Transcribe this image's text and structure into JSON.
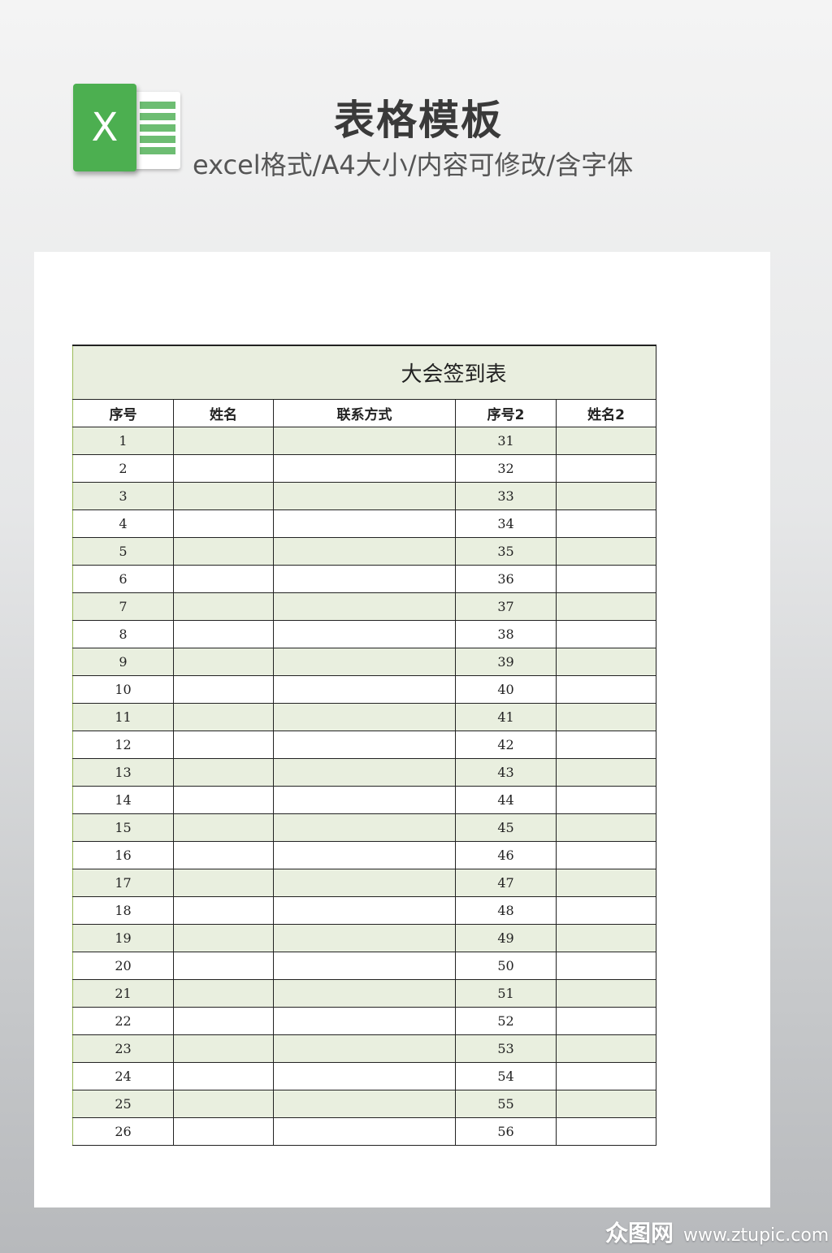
{
  "header": {
    "title": "表格模板",
    "subtitle": "excel格式/A4大小/内容可修改/含字体",
    "logo_letter": "X"
  },
  "sheet": {
    "title": "大会签到表",
    "columns": [
      "序号",
      "姓名",
      "联系方式",
      "序号2",
      "姓名2"
    ],
    "rows": [
      [
        1,
        31
      ],
      [
        2,
        32
      ],
      [
        3,
        33
      ],
      [
        4,
        34
      ],
      [
        5,
        35
      ],
      [
        6,
        36
      ],
      [
        7,
        37
      ],
      [
        8,
        38
      ],
      [
        9,
        39
      ],
      [
        10,
        40
      ],
      [
        11,
        41
      ],
      [
        12,
        42
      ],
      [
        13,
        43
      ],
      [
        14,
        44
      ],
      [
        15,
        45
      ],
      [
        16,
        46
      ],
      [
        17,
        47
      ],
      [
        18,
        48
      ],
      [
        19,
        49
      ],
      [
        20,
        50
      ],
      [
        21,
        51
      ],
      [
        22,
        52
      ],
      [
        23,
        53
      ],
      [
        24,
        54
      ],
      [
        25,
        55
      ],
      [
        26,
        56
      ]
    ]
  },
  "watermark": {
    "brand": "众图网",
    "url": "www.ztupic.com"
  },
  "colors": {
    "stripe": "#e9efdf",
    "excel_green": "#4caf50"
  }
}
